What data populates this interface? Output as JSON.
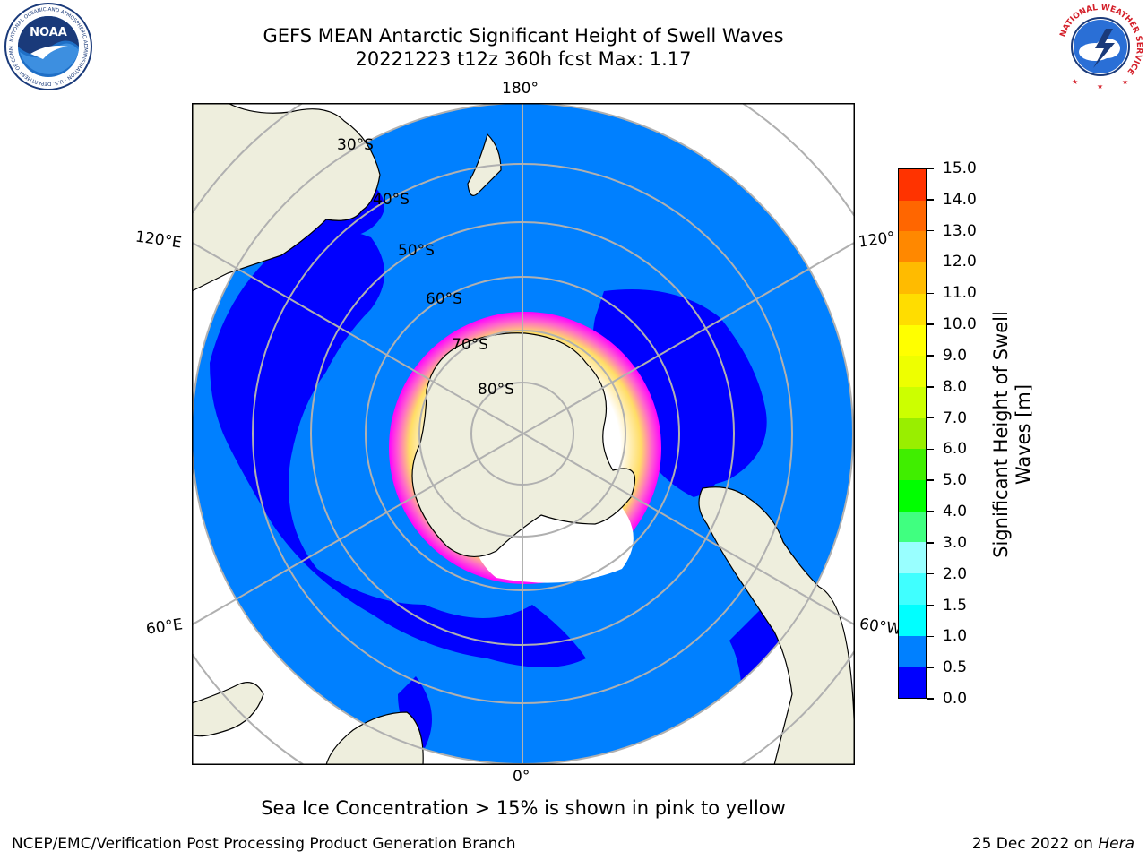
{
  "header": {
    "title_line1": "GEFS MEAN Antarctic Significant Height of Swell Waves",
    "title_line2": "20221223 t12z 360h fcst   Max: 1.17"
  },
  "logos": {
    "left": {
      "icon": "noaa-logo",
      "text": "NOAA",
      "ring_text": "NATIONAL OCEANIC AND ATMOSPHERIC ADMINISTRATION · U.S. DEPARTMENT OF COMMERCE"
    },
    "right": {
      "icon": "nws-logo",
      "ring_text": "NATIONAL WEATHER SERVICE"
    }
  },
  "map": {
    "projection": "south-polar-stereographic",
    "longitude_labels": {
      "top": "180°",
      "bottom": "0°",
      "left_upper": "120°E",
      "left_lower": "60°E",
      "right_upper": "120°",
      "right_lower": "60°W"
    },
    "latitude_labels": [
      "30°S",
      "40°S",
      "50°S",
      "60°S",
      "70°S",
      "80°S"
    ],
    "colors": {
      "land": "#eeeedd",
      "ocean_default": "#0080ff",
      "low_swell": "#0000ff",
      "grid": "#b0b0b0",
      "sea_ice": [
        "#ff00ff",
        "#ff66cc",
        "#ffaa55",
        "#ffdd66",
        "#ffffff"
      ]
    }
  },
  "colorbar": {
    "label": "Significant Height of Swell Waves [m]",
    "ticks": [
      "0.0",
      "0.5",
      "1.0",
      "1.5",
      "2.0",
      "3.0",
      "4.0",
      "5.0",
      "6.0",
      "7.0",
      "8.0",
      "9.0",
      "10.0",
      "11.0",
      "12.0",
      "13.0",
      "14.0",
      "15.0"
    ],
    "colors": [
      "#0000ff",
      "#0080ff",
      "#00ffff",
      "#40ffff",
      "#99ffff",
      "#40ff80",
      "#00ff00",
      "#40ee00",
      "#99ee00",
      "#ccff00",
      "#eeff00",
      "#ffff00",
      "#ffdd00",
      "#ffbb00",
      "#ff8800",
      "#ff6600",
      "#ff3300",
      "#ff0000"
    ]
  },
  "chart_data": {
    "type": "heatmap",
    "title": "GEFS MEAN Antarctic Significant Height of Swell Waves",
    "subtitle": "20221223 t12z 360h fcst   Max: 1.17",
    "colorbar_range": [
      0.0,
      15.0
    ],
    "units": "m",
    "max_value": 1.17
  },
  "note": "Sea Ice Concentration > 15% is shown in pink to yellow",
  "footer": {
    "left": "NCEP/EMC/Verification Post Processing Product Generation Branch",
    "right_date": "25 Dec 2022 on",
    "right_system": "Hera"
  }
}
